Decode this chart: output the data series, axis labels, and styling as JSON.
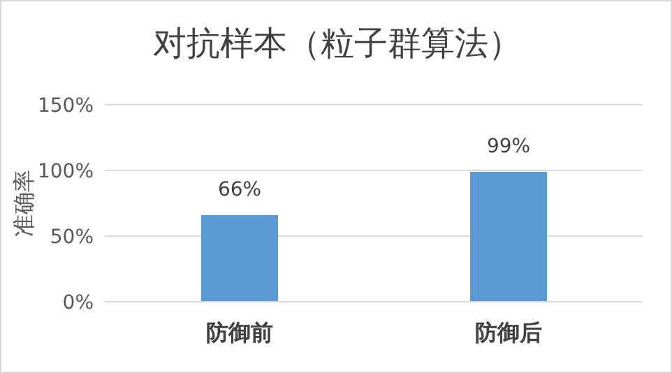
{
  "chart_data": {
    "type": "bar",
    "title": "对抗样本（粒子群算法）",
    "ylabel": "准确率",
    "categories": [
      "防御前",
      "防御后"
    ],
    "values": [
      66,
      99
    ],
    "color": "#5b9bd5",
    "value_labels": [
      "66%",
      "99%"
    ],
    "ylim": [
      0,
      150
    ],
    "yticks": [
      {
        "value": 0,
        "label": "0%"
      },
      {
        "value": 50,
        "label": "50%"
      },
      {
        "value": 100,
        "label": "100%"
      },
      {
        "value": 150,
        "label": "150%"
      }
    ],
    "grid": "y",
    "legend": false
  }
}
